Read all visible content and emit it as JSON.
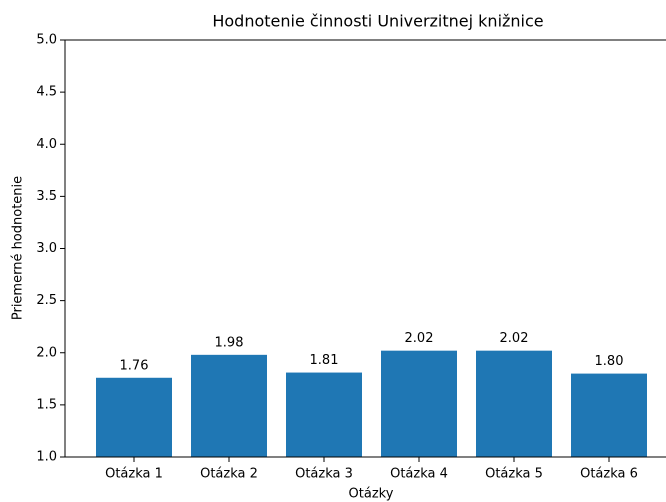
{
  "chart_data": {
    "type": "bar",
    "title": "Hodnotenie činnosti Univerzitnej knižnice",
    "x_label": "Otázky",
    "y_label": "Priemerné hodnotenie",
    "categories": [
      "Otázka 1",
      "Otázka 2",
      "Otázka 3",
      "Otázka 4",
      "Otázka 5",
      "Otázka 6"
    ],
    "values": [
      1.76,
      1.98,
      1.81,
      2.02,
      2.02,
      1.8
    ],
    "value_labels": [
      "1.76",
      "1.98",
      "1.81",
      "2.02",
      "2.02",
      "1.80"
    ],
    "color": "#1f77b4",
    "ylim": [
      1,
      5
    ],
    "yticks": [
      {
        "value": 1,
        "label": "1.0"
      },
      {
        "value": 1.5,
        "label": "1.5"
      },
      {
        "value": 2,
        "label": "2.0"
      },
      {
        "value": 2.5,
        "label": "2.5"
      },
      {
        "value": 3,
        "label": "3.0"
      },
      {
        "value": 3.5,
        "label": "3.5"
      },
      {
        "value": 4,
        "label": "4.0"
      },
      {
        "value": 4.5,
        "label": "4.5"
      },
      {
        "value": 5,
        "label": "5.0"
      }
    ]
  }
}
